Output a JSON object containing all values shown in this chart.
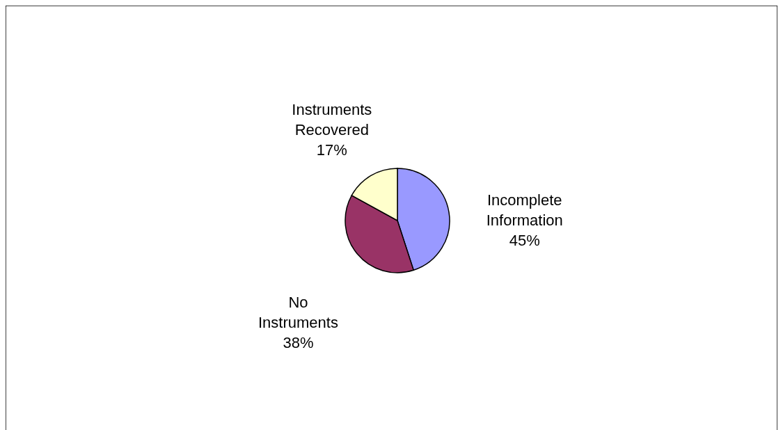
{
  "chart_data": {
    "type": "pie",
    "categories": [
      "Incomplete Information",
      "No Instruments",
      "Instruments Recovered"
    ],
    "values": [
      45,
      38,
      17
    ],
    "colors": [
      "#9999ff",
      "#993366",
      "#ffffcc"
    ],
    "value_labels": [
      "45%",
      "38%",
      "17%"
    ]
  }
}
